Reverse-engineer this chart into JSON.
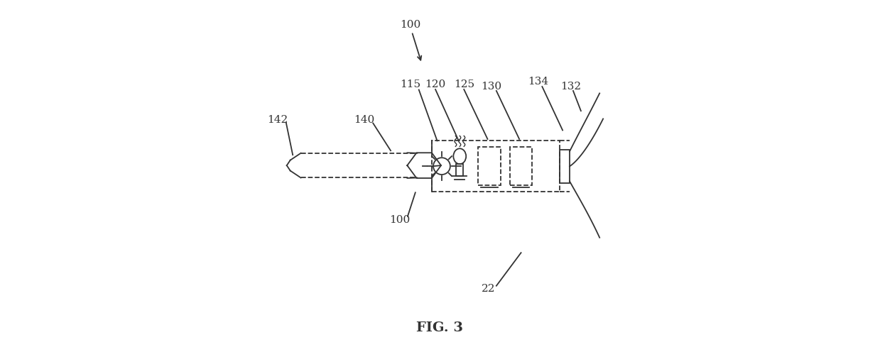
{
  "bg_color": "#ffffff",
  "line_color": "#333333",
  "fig_label": "FIG. 3",
  "labels": {
    "100_top": "100",
    "115": "115",
    "120": "120",
    "125": "125",
    "130": "130",
    "134": "134",
    "132": "132",
    "140": "140",
    "142": "142",
    "100_bot": "100",
    "22": "22"
  }
}
